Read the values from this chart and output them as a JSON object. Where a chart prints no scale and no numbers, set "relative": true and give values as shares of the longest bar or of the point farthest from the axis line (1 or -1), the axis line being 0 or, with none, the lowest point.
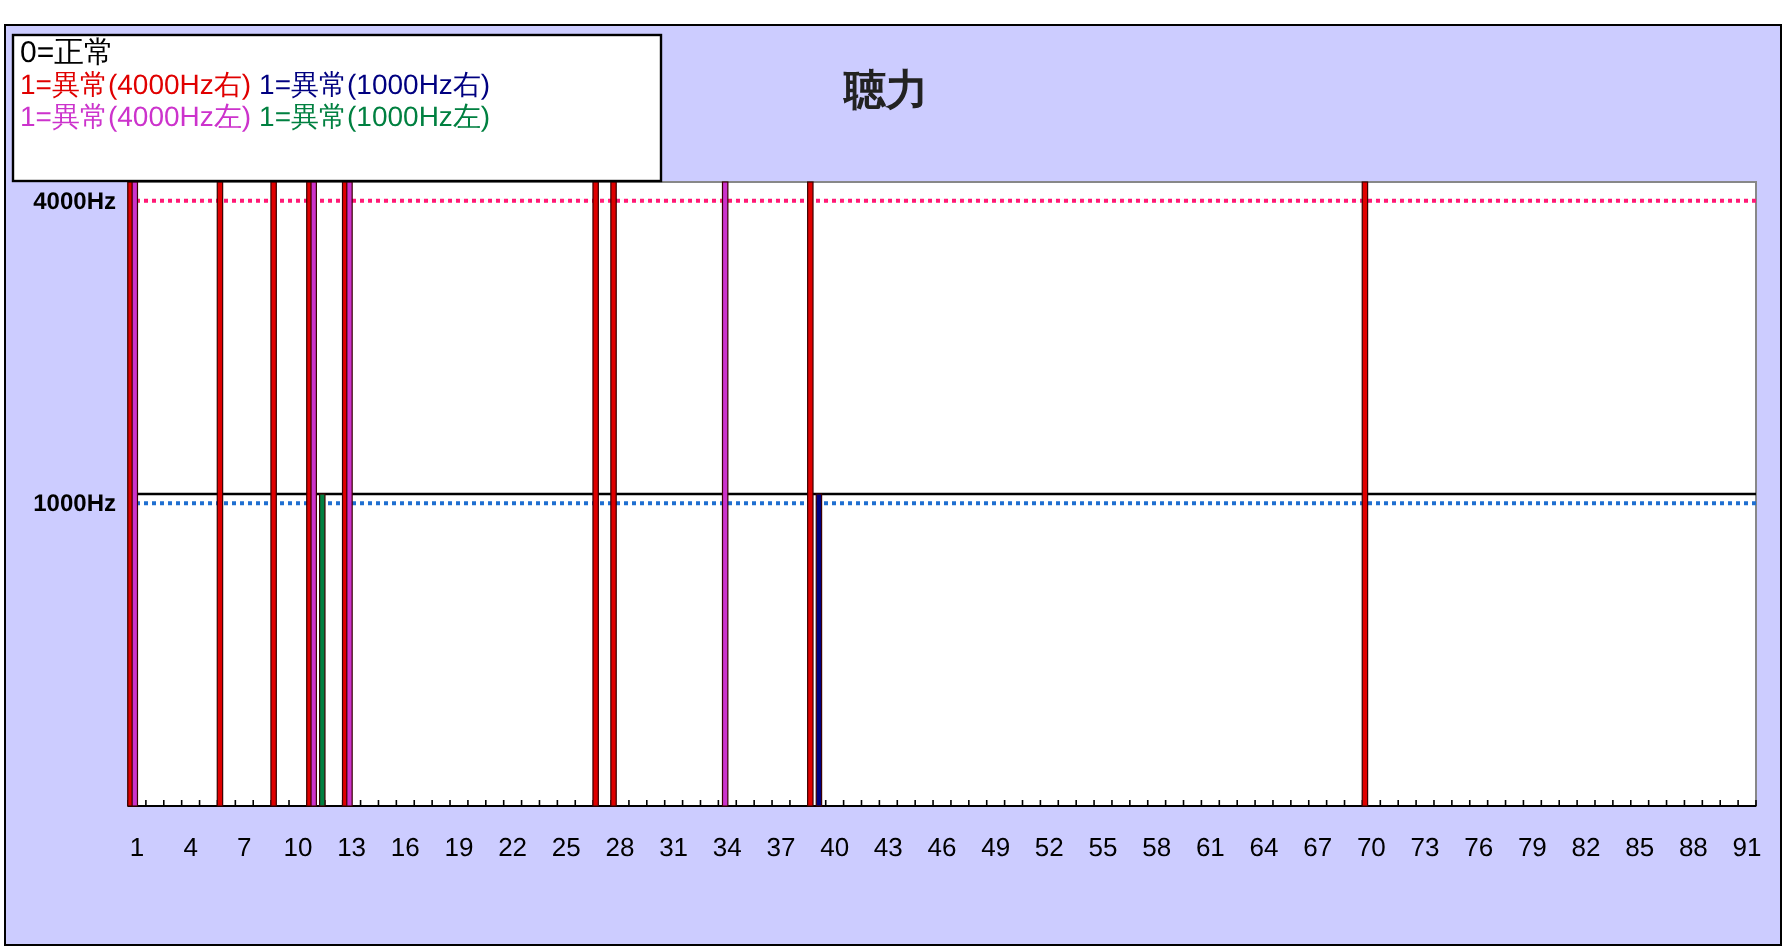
{
  "chart_data": {
    "type": "bar",
    "title": "聴力",
    "legend_title": "0=正常",
    "legend": "top left",
    "categories": [
      "1",
      null,
      null,
      "4",
      null,
      null,
      "7",
      null,
      null,
      "10",
      null,
      null,
      "13",
      null,
      null,
      "16",
      null,
      null,
      "19",
      null,
      null,
      "22",
      null,
      null,
      "25",
      null,
      null,
      "28",
      null,
      null,
      "31",
      null,
      null,
      "34",
      null,
      null,
      "37",
      null,
      null,
      "40",
      null,
      null,
      "43",
      null,
      null,
      "46",
      null,
      null,
      "49",
      null,
      null,
      "52",
      null,
      null,
      "55",
      null,
      null,
      "58",
      null,
      null,
      "61",
      null,
      null,
      "64",
      null,
      null,
      "67",
      null,
      null,
      "70",
      null,
      null,
      "73",
      null,
      null,
      "76",
      null,
      null,
      "79",
      null,
      null,
      "82",
      null,
      null,
      "85",
      null,
      null,
      "88",
      null,
      null,
      "91"
    ],
    "series": [
      {
        "name": "1=異常(4000Hz右)",
        "color": "#e00000",
        "values": [
          1,
          0,
          0,
          0,
          0,
          1,
          0,
          0,
          1,
          0,
          1,
          0,
          1,
          0,
          0,
          0,
          0,
          0,
          0,
          0,
          0,
          0,
          0,
          0,
          0,
          0,
          1,
          1,
          0,
          0,
          0,
          0,
          0,
          0,
          0,
          0,
          0,
          0,
          1,
          0,
          0,
          0,
          0,
          0,
          0,
          0,
          0,
          0,
          0,
          0,
          0,
          0,
          0,
          0,
          0,
          0,
          0,
          0,
          0,
          0,
          0,
          0,
          0,
          0,
          0,
          0,
          0,
          0,
          0,
          1,
          0,
          0,
          0,
          0,
          0,
          0,
          0,
          0,
          0,
          0,
          0,
          0,
          0,
          0,
          0,
          0,
          0,
          0,
          0,
          0,
          0
        ]
      },
      {
        "name": "1=異常(4000Hz左)",
        "color": "#cc33cc",
        "values": [
          1,
          0,
          0,
          0,
          0,
          0,
          0,
          0,
          0,
          0,
          1,
          0,
          1,
          0,
          0,
          0,
          0,
          0,
          0,
          0,
          0,
          0,
          0,
          0,
          0,
          0,
          0,
          0,
          0,
          0,
          0,
          0,
          0,
          1,
          0,
          0,
          0,
          0,
          0,
          0,
          0,
          0,
          0,
          0,
          0,
          0,
          0,
          0,
          0,
          0,
          0,
          0,
          0,
          0,
          0,
          0,
          0,
          0,
          0,
          0,
          0,
          0,
          0,
          0,
          0,
          0,
          0,
          0,
          0,
          0,
          0,
          0,
          0,
          0,
          0,
          0,
          0,
          0,
          0,
          0,
          0,
          0,
          0,
          0,
          0,
          0,
          0,
          0,
          0,
          0,
          0
        ]
      },
      {
        "name": "1=異常(1000Hz右)",
        "color": "#000080",
        "values": [
          0,
          0,
          0,
          0,
          0,
          0,
          0,
          0,
          0,
          0,
          0,
          0,
          0,
          0,
          0,
          0,
          0,
          0,
          0,
          0,
          0,
          0,
          0,
          0,
          0,
          0,
          0,
          0,
          0,
          0,
          0,
          0,
          0,
          0,
          0,
          0,
          0,
          0,
          0.5,
          0,
          0,
          0,
          0,
          0,
          0,
          0,
          0,
          0,
          0,
          0,
          0,
          0,
          0,
          0,
          0,
          0,
          0,
          0,
          0,
          0,
          0,
          0,
          0,
          0,
          0,
          0,
          0,
          0,
          0,
          0,
          0,
          0,
          0,
          0,
          0,
          0,
          0,
          0,
          0,
          0,
          0,
          0,
          0,
          0,
          0,
          0,
          0,
          0,
          0,
          0,
          0
        ]
      },
      {
        "name": "1=異常(1000Hz左)",
        "color": "#008040",
        "values": [
          0,
          0,
          0,
          0,
          0,
          0,
          0,
          0,
          0,
          0,
          0.5,
          0,
          0,
          0,
          0,
          0,
          0,
          0,
          0,
          0,
          0,
          0,
          0,
          0,
          0,
          0,
          0,
          0,
          0,
          0,
          0,
          0,
          0,
          0,
          0,
          0,
          0,
          0,
          0,
          0,
          0,
          0,
          0,
          0,
          0,
          0,
          0,
          0,
          0,
          0,
          0,
          0,
          0,
          0,
          0,
          0,
          0,
          0,
          0,
          0,
          0,
          0,
          0,
          0,
          0,
          0,
          0,
          0,
          0,
          0,
          0,
          0,
          0,
          0,
          0,
          0,
          0,
          0,
          0,
          0,
          0,
          0,
          0,
          0,
          0,
          0,
          0,
          0,
          0,
          0,
          0
        ]
      }
    ],
    "relative": true,
    "ref_lines": [
      {
        "axis": "y",
        "value": 0.5,
        "color": "#000000",
        "line_style": "solid"
      },
      {
        "axis": "y",
        "value": 0.485,
        "color": "#1f6fd0",
        "line_style": "dotted",
        "label": "1000Hz"
      },
      {
        "axis": "y",
        "value": 0.97,
        "color": "#ff1a75",
        "line_style": "dotted",
        "label": "4000Hz"
      }
    ]
  }
}
